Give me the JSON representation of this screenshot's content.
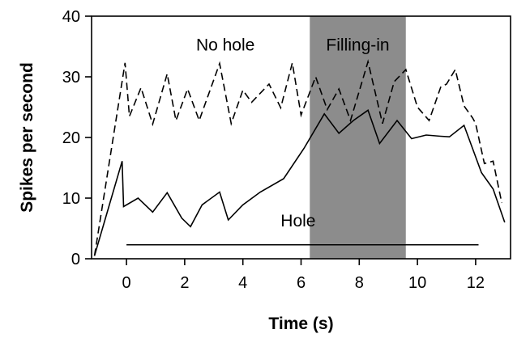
{
  "chart_data": {
    "type": "line",
    "title": "",
    "xlabel": "Time (s)",
    "ylabel": "Spikes per second",
    "xlim": [
      -1.2,
      13.2
    ],
    "ylim": [
      0,
      40
    ],
    "xticks": [
      0,
      2,
      4,
      6,
      8,
      10,
      12
    ],
    "yticks": [
      0,
      10,
      20,
      30,
      40
    ],
    "grid": false,
    "shaded_region": {
      "x0": 6.3,
      "x1": 9.6,
      "label": "Filling-in",
      "color": "#8c8c8c"
    },
    "stimulus_bar": {
      "x0": 0,
      "x1": 12.1,
      "y": 2.3
    },
    "series": [
      {
        "name": "No hole",
        "style": "dashed",
        "x": [
          -1.1,
          -0.05,
          0.1,
          0.5,
          0.9,
          1.4,
          1.7,
          2.1,
          2.5,
          3.2,
          3.6,
          4.0,
          4.3,
          4.9,
          5.3,
          5.7,
          6.0,
          6.5,
          6.9,
          7.3,
          7.7,
          8.3,
          8.8,
          9.2,
          9.6,
          10.0,
          10.4,
          10.8,
          11.0,
          11.3,
          11.6,
          11.9,
          12.0,
          12.3,
          12.6,
          12.9
        ],
        "y": [
          0.5,
          32.3,
          23.5,
          28.2,
          22.2,
          30.5,
          22.8,
          28.0,
          22.8,
          32.2,
          22.3,
          27.8,
          25.8,
          28.8,
          24.9,
          32.3,
          23.7,
          30.0,
          24.6,
          28.0,
          22.8,
          32.5,
          22.3,
          29.2,
          31.2,
          25.0,
          22.8,
          28.3,
          28.8,
          31.2,
          25.2,
          23.2,
          22.3,
          15.7,
          16.1,
          9.2
        ]
      },
      {
        "name": "Hole",
        "style": "solid",
        "x": [
          -1.1,
          -0.15,
          -0.1,
          0.4,
          0.9,
          1.4,
          1.9,
          2.2,
          2.6,
          3.2,
          3.5,
          4.0,
          4.6,
          5.4,
          6.1,
          6.8,
          7.3,
          7.8,
          8.3,
          8.7,
          9.3,
          9.8,
          10.3,
          10.8,
          11.1,
          11.6,
          12.2,
          12.6,
          13.0
        ],
        "y": [
          0.5,
          16.1,
          8.6,
          10.0,
          7.7,
          10.9,
          6.7,
          5.3,
          8.9,
          11.0,
          6.4,
          8.9,
          11.0,
          13.2,
          18.2,
          23.9,
          20.7,
          22.8,
          24.5,
          19.0,
          22.8,
          19.8,
          20.4,
          20.2,
          20.1,
          22.0,
          14.2,
          11.5,
          6.0
        ]
      }
    ],
    "annotations": [
      {
        "text": "No hole",
        "x": 3.4,
        "y": 35.3
      },
      {
        "text": "Filling-in",
        "x": 7.95,
        "y": 35.3
      },
      {
        "text": "Hole",
        "x": 5.9,
        "y": 6.3
      }
    ]
  }
}
